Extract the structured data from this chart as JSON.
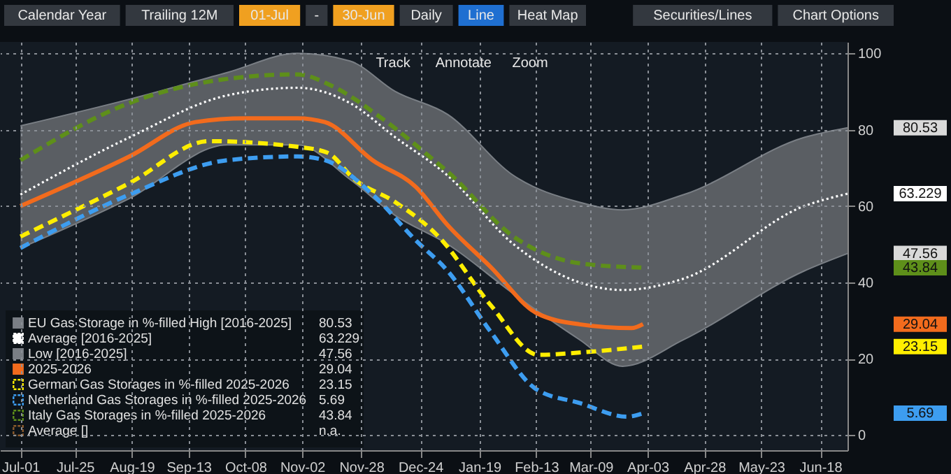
{
  "chart_data": {
    "type": "line",
    "xlim": [
      "2025-06-22",
      "2026-06-30"
    ],
    "xticks": [
      {
        "value": "2025-07-01",
        "label": "Jul-01"
      },
      {
        "value": "2025-07-25",
        "label": "Jul-25"
      },
      {
        "value": "2025-08-19",
        "label": "Aug-19"
      },
      {
        "value": "2025-09-13",
        "label": "Sep-13"
      },
      {
        "value": "2025-10-08",
        "label": "Oct-08"
      },
      {
        "value": "2025-11-02",
        "label": "Nov-02"
      },
      {
        "value": "2025-11-28",
        "label": "Nov-28"
      },
      {
        "value": "2025-12-24",
        "label": "Dec-24"
      },
      {
        "value": "2026-01-19",
        "label": "Jan-19"
      },
      {
        "value": "2026-02-13",
        "label": "Feb-13"
      },
      {
        "value": "2026-03-09",
        "label": "Mar-09"
      },
      {
        "value": "2026-04-03",
        "label": "Apr-03"
      },
      {
        "value": "2026-04-28",
        "label": "Apr-28"
      },
      {
        "value": "2026-05-23",
        "label": "May-23"
      },
      {
        "value": "2026-06-18",
        "label": "Jun-18"
      }
    ],
    "ylim": [
      -4,
      103
    ],
    "yticks": [
      0,
      20,
      40,
      60,
      80,
      100
    ],
    "grid": true,
    "legend": "bottom left",
    "annotations": [
      "n.a.",
      "Calendar Year",
      "Trailing 12M",
      "01-Jul",
      "-",
      "30-Jun",
      "Daily",
      "Line",
      "Heat Map",
      "Securities/Lines",
      "Chart Options",
      "Track",
      "Annotate",
      "Zoom",
      "80.53",
      "63.229",
      "47.56",
      "29.04",
      "23.15",
      "5.69",
      "43.84"
    ],
    "series": [
      {
        "name": "EU Gas Storage in %-filled High [2016-2025]",
        "color": "#7a7f85",
        "line_style": "solid",
        "x": [
          "2025-07-01",
          "2025-08-18",
          "2025-09-30",
          "2025-10-31",
          "2025-11-23",
          "2025-12-13",
          "2026-01-05",
          "2026-02-03",
          "2026-03-04",
          "2026-03-23",
          "2026-04-19",
          "2026-06-11",
          "2026-06-30"
        ],
        "values": [
          81,
          88,
          95,
          100,
          98,
          90,
          84,
          68,
          61,
          59,
          63,
          78,
          80.53
        ]
      },
      {
        "name": "Average  [2016-2025]",
        "color": "#ffffff",
        "line_style": "dotted",
        "x": [
          "2025-07-01",
          "2025-08-18",
          "2025-09-30",
          "2025-10-31",
          "2025-11-23",
          "2025-12-13",
          "2026-01-05",
          "2026-02-03",
          "2026-03-04",
          "2026-03-23",
          "2026-04-19",
          "2026-06-11",
          "2026-06-30"
        ],
        "values": [
          63,
          78,
          89,
          91,
          87,
          78,
          68,
          50,
          40,
          38,
          41,
          60,
          63.229
        ],
        "lower": [
          49,
          62,
          76,
          76,
          67,
          57.5,
          50,
          37,
          25,
          18,
          25,
          43,
          47.56
        ],
        "upper": [
          81,
          88,
          95,
          100,
          98,
          90,
          84,
          68,
          61,
          59,
          63,
          78,
          80.53
        ]
      },
      {
        "name": "Low  [2016-2025]",
        "color": "#7a7f85",
        "line_style": "solid",
        "x": [
          "2025-07-01",
          "2025-08-18",
          "2025-09-30",
          "2025-10-31",
          "2025-11-23",
          "2025-12-13",
          "2026-01-05",
          "2026-02-03",
          "2026-03-04",
          "2026-03-23",
          "2026-04-19",
          "2026-06-11",
          "2026-06-30"
        ],
        "values": [
          49,
          62,
          76,
          76,
          67,
          57.5,
          50,
          37,
          25,
          18,
          25,
          43,
          47.56
        ]
      },
      {
        "name": "2025-2026",
        "color": "#f26b1d",
        "line_style": "solid",
        "x": [
          "2025-07-01",
          "2025-08-18",
          "2025-09-16",
          "2025-10-08",
          "2025-10-31",
          "2025-11-12",
          "2025-12-03",
          "2025-12-22",
          "2026-01-05",
          "2026-01-24",
          "2026-02-13",
          "2026-03-04",
          "2026-03-27",
          "2026-04-01"
        ],
        "values": [
          60,
          73,
          82,
          83,
          83,
          82,
          72,
          65,
          55,
          44,
          32,
          29,
          28,
          29.04
        ]
      },
      {
        "name": "German Gas Storages in %-filled 2025-2026",
        "color": "#ffee00",
        "line_style": "dashed",
        "x": [
          "2025-07-01",
          "2025-08-18",
          "2025-09-22",
          "2025-10-31",
          "2025-11-13",
          "2025-11-25",
          "2025-12-13",
          "2026-01-01",
          "2026-01-24",
          "2026-02-14",
          "2026-03-04",
          "2026-04-01"
        ],
        "values": [
          52,
          66,
          77,
          75.5,
          74,
          67,
          61,
          52,
          34,
          21,
          21.6,
          23.15
        ]
      },
      {
        "name": "Netherland Gas Storages in %-filled 2025-2026",
        "color": "#3d9df0",
        "line_style": "dashed",
        "x": [
          "2025-07-01",
          "2025-08-18",
          "2025-09-30",
          "2025-10-31",
          "2025-11-12",
          "2025-12-03",
          "2025-12-22",
          "2026-01-05",
          "2026-01-24",
          "2026-02-13",
          "2026-03-04",
          "2026-03-25",
          "2026-04-01"
        ],
        "values": [
          49,
          63,
          72,
          73,
          72,
          63,
          51,
          43,
          27,
          12,
          8.4,
          4.8,
          5.69
        ]
      },
      {
        "name": "Italy Gas Storages in %-filled 2025-2026",
        "color": "#5e8f1a",
        "line_style": "dashed",
        "x": [
          "2025-07-01",
          "2025-08-18",
          "2025-09-26",
          "2025-10-31",
          "2025-11-15",
          "2025-12-07",
          "2026-01-01",
          "2026-01-05",
          "2026-02-03",
          "2026-03-04",
          "2026-04-01"
        ],
        "values": [
          72,
          87,
          93,
          94.5,
          91.5,
          83,
          71,
          69,
          52,
          45,
          43.84
        ]
      },
      {
        "name": "Average  []",
        "color": "#8b5a2b",
        "line_style": "dashed"
      }
    ]
  }
}
